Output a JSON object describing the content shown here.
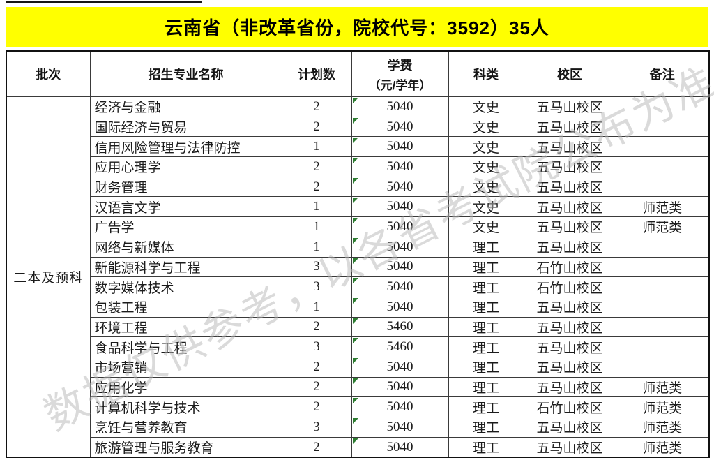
{
  "title": "云南省（非改革省份，院校代号：3592）35人",
  "watermark": "数据仅供参考，以各省考试院公布为准",
  "colors": {
    "banner_yellow": "#ffff00",
    "error_triangle_green": "#2e7d32",
    "grid_line": "#3a3a3a"
  },
  "table": {
    "headers": {
      "batch": "批次",
      "major": "招生专业名称",
      "plan": "计划数",
      "fee_line1": "学费",
      "fee_line2": "（元/学年）",
      "category": "科类",
      "campus": "校区",
      "remark": "备注"
    },
    "batch_label": "二本及预科",
    "rows": [
      {
        "major": "经济与金融",
        "plan": "2",
        "fee": "5040",
        "category": "文史",
        "campus": "五马山校区",
        "remark": ""
      },
      {
        "major": "国际经济与贸易",
        "plan": "2",
        "fee": "5040",
        "category": "文史",
        "campus": "五马山校区",
        "remark": ""
      },
      {
        "major": "信用风险管理与法律防控",
        "plan": "1",
        "fee": "5040",
        "category": "文史",
        "campus": "五马山校区",
        "remark": ""
      },
      {
        "major": "应用心理学",
        "plan": "2",
        "fee": "5040",
        "category": "文史",
        "campus": "五马山校区",
        "remark": ""
      },
      {
        "major": "财务管理",
        "plan": "2",
        "fee": "5040",
        "category": "文史",
        "campus": "五马山校区",
        "remark": ""
      },
      {
        "major": "汉语言文学",
        "plan": "1",
        "fee": "5040",
        "category": "文史",
        "campus": "五马山校区",
        "remark": "师范类"
      },
      {
        "major": "广告学",
        "plan": "1",
        "fee": "5040",
        "category": "文史",
        "campus": "五马山校区",
        "remark": "师范类"
      },
      {
        "major": "网络与新媒体",
        "plan": "1",
        "fee": "5040",
        "category": "理工",
        "campus": "五马山校区",
        "remark": ""
      },
      {
        "major": "新能源科学与工程",
        "plan": "3",
        "fee": "5040",
        "category": "理工",
        "campus": "石竹山校区",
        "remark": ""
      },
      {
        "major": "数字媒体技术",
        "plan": "3",
        "fee": "5040",
        "category": "理工",
        "campus": "石竹山校区",
        "remark": ""
      },
      {
        "major": "包装工程",
        "plan": "1",
        "fee": "5040",
        "category": "理工",
        "campus": "五马山校区",
        "remark": ""
      },
      {
        "major": "环境工程",
        "plan": "2",
        "fee": "5460",
        "category": "理工",
        "campus": "五马山校区",
        "remark": ""
      },
      {
        "major": "食品科学与工程",
        "plan": "3",
        "fee": "5460",
        "category": "理工",
        "campus": "五马山校区",
        "remark": ""
      },
      {
        "major": "市场营销",
        "plan": "2",
        "fee": "5040",
        "category": "理工",
        "campus": "五马山校区",
        "remark": ""
      },
      {
        "major": "应用化学",
        "plan": "2",
        "fee": "5040",
        "category": "理工",
        "campus": "五马山校区",
        "remark": "师范类"
      },
      {
        "major": "计算机科学与技术",
        "plan": "2",
        "fee": "5040",
        "category": "理工",
        "campus": "石竹山校区",
        "remark": "师范类"
      },
      {
        "major": "烹饪与营养教育",
        "plan": "3",
        "fee": "5040",
        "category": "理工",
        "campus": "五马山校区",
        "remark": "师范类"
      },
      {
        "major": "旅游管理与服务教育",
        "plan": "2",
        "fee": "5040",
        "category": "理工",
        "campus": "五马山校区",
        "remark": "师范类"
      }
    ]
  }
}
